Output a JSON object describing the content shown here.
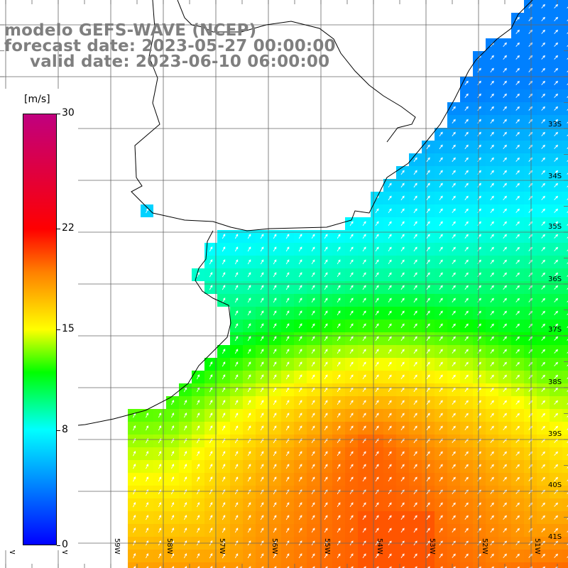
{
  "titles": {
    "model": "modelo GEFS-WAVE (NCEP)",
    "forecast": "forecast date: 2023-05-27 00:00:00",
    "valid": "valid date: 2023-06-10 06:00:00"
  },
  "legend": {
    "units": "[m/s]",
    "ticks": [
      {
        "label": "30",
        "value": 30
      },
      {
        "label": "22",
        "value": 22
      },
      {
        "label": "15",
        "value": 15
      },
      {
        "label": "8",
        "value": 8
      },
      {
        "label": "0",
        "value": 0
      }
    ],
    "range": [
      0,
      30
    ],
    "colors": [
      "#0000ff",
      "#00ffff",
      "#00ff00",
      "#ffff00",
      "#ff8000",
      "#ff0000",
      "#c0007f"
    ]
  },
  "axes": {
    "latitude_labels": [
      "33S",
      "34S",
      "35S",
      "36S",
      "37S",
      "38S",
      "39S",
      "40S",
      "41S"
    ],
    "longitude_labels": [
      "61W",
      "60W",
      "59W",
      "58W",
      "57W",
      "56W",
      "55W",
      "54W",
      "53W",
      "52W",
      "51W"
    ],
    "lon_range": [
      -61.5,
      -50.7
    ],
    "lat_range": [
      -41.4,
      -31.0
    ]
  },
  "field": {
    "variable": "wind speed",
    "arrow_direction": "north-east"
  }
}
